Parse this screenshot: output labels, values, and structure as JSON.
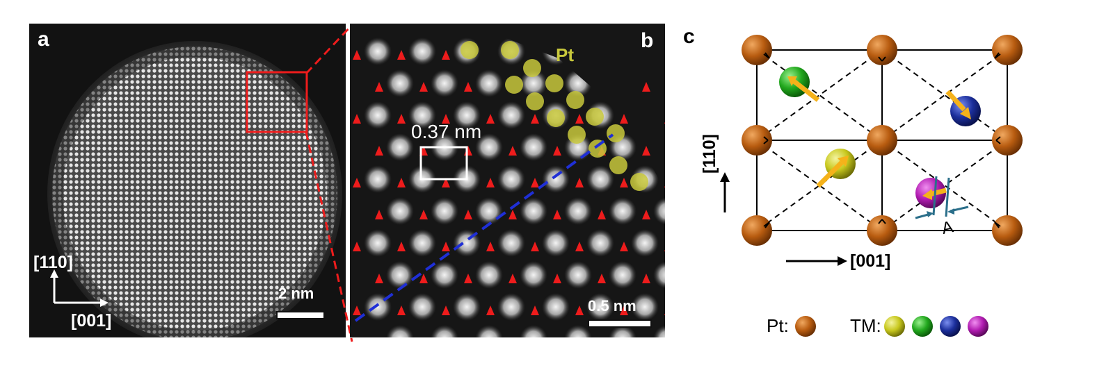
{
  "panels": {
    "a": {
      "label": "a",
      "dir_vertical": "[110]",
      "dir_horizontal": "[001]",
      "scale_bar": "2 nm"
    },
    "b": {
      "label": "b",
      "element_label": "Pt",
      "measure": "0.37 nm",
      "scale_bar": "0.5 nm"
    },
    "c": {
      "label": "c",
      "dir_vertical": "[110]",
      "dir_horizontal": "[001]",
      "delta_symbol": "A",
      "legend": {
        "pt_label": "Pt:",
        "tm_label": "TM:"
      }
    }
  },
  "colors": {
    "pt": "#b85c10",
    "tm": [
      "#c8c81e",
      "#22a81e",
      "#1c2f9c",
      "#b11cb1"
    ],
    "arrow": "#f5b21a",
    "red": "#ee1c1c",
    "blue_line": "#1f2fd6",
    "pt_overlay": "#c8c83c",
    "shift_marker": "#2b6f8a"
  }
}
